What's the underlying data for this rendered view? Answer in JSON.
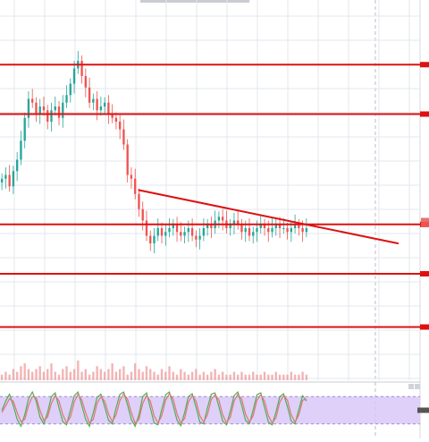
{
  "chart_data": [
    {
      "type": "candlestick",
      "title": "",
      "xlabel": "",
      "ylabel": "",
      "grid": true,
      "y_scale": "linear",
      "price_ylim": [
        0,
        100
      ],
      "colors": {
        "up": "#26a69a",
        "down": "#ef5350",
        "level_lines": "#dd1111",
        "trendline": "#dd1111",
        "grid": "#e3e7ee"
      },
      "series": [
        {
          "closes": [
            53,
            54,
            51,
            55,
            58,
            63,
            69,
            74,
            73,
            70,
            72,
            71,
            68,
            71,
            72,
            69,
            73,
            75,
            78,
            82,
            84,
            80,
            77,
            73,
            74,
            71,
            72,
            73,
            70,
            69,
            68,
            66,
            62,
            54,
            53,
            49,
            45,
            42,
            38,
            36,
            38,
            40,
            38,
            39,
            40,
            41,
            39,
            38,
            39,
            40,
            38,
            37,
            38,
            40,
            41,
            40,
            42,
            43,
            42,
            40,
            41,
            42,
            41,
            39,
            40,
            38,
            39,
            40,
            41,
            40,
            39,
            40,
            41,
            40,
            40,
            39,
            40,
            41,
            40,
            39,
            40
          ]
        }
      ],
      "horizontal_levels": [
        83,
        70,
        41,
        28,
        14
      ],
      "trendline": {
        "from": {
          "index": 36,
          "value": 50
        },
        "to": {
          "index": 104,
          "value": 36
        }
      },
      "price_axis_markers": [
        {
          "value": 42,
          "color": "#e57373"
        },
        {
          "value": 41,
          "color": "#ef5350"
        }
      ]
    },
    {
      "type": "bar",
      "name": "volume",
      "color": "#ef9a9a",
      "values": [
        2,
        3,
        2,
        4,
        3,
        5,
        6,
        4,
        3,
        4,
        5,
        3,
        4,
        6,
        3,
        2,
        4,
        5,
        3,
        4,
        7,
        3,
        4,
        2,
        3,
        5,
        4,
        3,
        4,
        6,
        3,
        4,
        5,
        2,
        3,
        6,
        4,
        3,
        5,
        4,
        3,
        2,
        4,
        3,
        5,
        3,
        2,
        4,
        3,
        2,
        3,
        4,
        2,
        3,
        2,
        3,
        4,
        2,
        3,
        2,
        2,
        3,
        2,
        3,
        2,
        2,
        3,
        2,
        2,
        3,
        2,
        2,
        3,
        2,
        2,
        2,
        3,
        2,
        2,
        3,
        2
      ]
    },
    {
      "type": "line",
      "name": "oscillator",
      "band_color": "#d8c8f8",
      "colors": [
        "#4caf50",
        "#e57373"
      ],
      "ylim": [
        0,
        100
      ],
      "band": [
        20,
        80
      ],
      "series": [
        {
          "values": [
            50,
            70,
            85,
            60,
            30,
            15,
            40,
            75,
            90,
            70,
            35,
            20,
            45,
            80,
            88,
            55,
            25,
            18,
            50,
            82,
            90,
            60,
            30,
            15,
            45,
            78,
            85,
            58,
            28,
            20,
            55,
            85,
            90,
            62,
            30,
            15,
            40,
            80,
            88,
            55,
            22,
            18,
            52,
            84,
            90,
            60,
            28,
            16,
            45,
            80,
            86,
            56,
            24,
            20,
            55,
            85,
            88,
            58,
            26,
            18,
            48,
            82,
            90,
            60,
            28,
            20,
            50,
            84,
            88,
            56,
            24,
            18,
            46,
            80,
            86,
            58,
            26,
            20,
            52,
            82,
            70
          ]
        },
        {
          "values": [
            45,
            60,
            75,
            70,
            45,
            25,
            30,
            60,
            80,
            78,
            50,
            28,
            35,
            65,
            82,
            70,
            40,
            22,
            35,
            68,
            85,
            72,
            45,
            22,
            30,
            65,
            80,
            70,
            42,
            25,
            40,
            72,
            86,
            74,
            45,
            22,
            30,
            65,
            82,
            70,
            38,
            22,
            38,
            72,
            86,
            74,
            42,
            22,
            32,
            68,
            82,
            70,
            38,
            24,
            40,
            74,
            84,
            72,
            40,
            22,
            35,
            70,
            85,
            74,
            42,
            24,
            38,
            72,
            84,
            70,
            38,
            22,
            34,
            68,
            82,
            72,
            40,
            24,
            40,
            72,
            75
          ]
        }
      ]
    }
  ]
}
